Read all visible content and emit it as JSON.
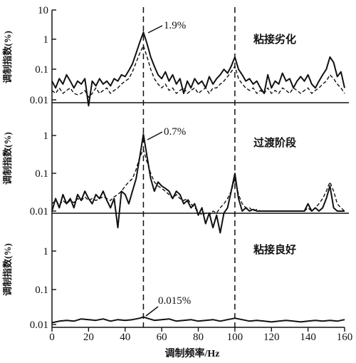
{
  "chart_data": {
    "type": "line",
    "xlabel": "调制频率/Hz",
    "xlim": [
      0,
      160
    ],
    "xticks": [
      "0",
      "20",
      "40",
      "60",
      "80",
      "100",
      "120",
      "140",
      "160"
    ],
    "ylabel": "调制指数(%)",
    "yscale": "log",
    "grid": false,
    "reference_lines_x": [
      50,
      100
    ],
    "panels": [
      {
        "stage_label": "粘接劣化",
        "ylim": [
          0.01,
          10
        ],
        "yticks": [
          "10",
          "1",
          "0.1",
          "0.01"
        ],
        "annotation": {
          "text": "1.9%",
          "x": 50,
          "y": 1.9
        },
        "series": [
          {
            "style": "solid",
            "x": [
              0,
              2,
              4,
              6,
              8,
              10,
              12,
              14,
              16,
              18,
              20,
              22,
              24,
              26,
              28,
              30,
              32,
              34,
              36,
              38,
              40,
              42,
              44,
              46,
              48,
              50,
              52,
              54,
              56,
              58,
              60,
              62,
              64,
              66,
              68,
              70,
              72,
              74,
              76,
              78,
              80,
              82,
              84,
              86,
              88,
              90,
              92,
              94,
              96,
              98,
              100,
              102,
              104,
              106,
              108,
              110,
              112,
              114,
              116,
              118,
              120,
              122,
              124,
              126,
              128,
              130,
              132,
              134,
              136,
              138,
              140,
              142,
              144,
              146,
              148,
              150,
              152,
              154,
              156,
              158,
              160
            ],
            "y": [
              0.05,
              0.03,
              0.06,
              0.04,
              0.08,
              0.05,
              0.03,
              0.05,
              0.04,
              0.06,
              0.008,
              0.05,
              0.035,
              0.06,
              0.04,
              0.05,
              0.035,
              0.06,
              0.05,
              0.08,
              0.07,
              0.11,
              0.18,
              0.4,
              0.9,
              1.9,
              0.8,
              0.3,
              0.15,
              0.08,
              0.06,
              0.1,
              0.05,
              0.08,
              0.04,
              0.06,
              0.02,
              0.05,
              0.03,
              0.06,
              0.04,
              0.05,
              0.03,
              0.07,
              0.04,
              0.06,
              0.08,
              0.12,
              0.09,
              0.15,
              0.3,
              0.12,
              0.08,
              0.05,
              0.06,
              0.04,
              0.05,
              0.03,
              0.02,
              0.08,
              0.03,
              0.05,
              0.04,
              0.09,
              0.05,
              0.06,
              0.03,
              0.05,
              0.07,
              0.05,
              0.08,
              0.04,
              0.03,
              0.05,
              0.08,
              0.12,
              0.3,
              0.2,
              0.07,
              0.1,
              0.03
            ]
          },
          {
            "style": "dashed",
            "x": [
              0,
              2,
              4,
              6,
              8,
              10,
              12,
              14,
              16,
              18,
              20,
              22,
              24,
              26,
              28,
              30,
              32,
              34,
              36,
              38,
              40,
              42,
              44,
              46,
              48,
              50,
              52,
              54,
              56,
              58,
              60,
              62,
              64,
              66,
              68,
              70,
              72,
              74,
              76,
              78,
              80,
              82,
              84,
              86,
              88,
              90,
              92,
              94,
              96,
              98,
              100,
              102,
              104,
              106,
              108,
              110,
              112,
              114,
              116,
              118,
              120,
              122,
              124,
              126,
              128,
              130,
              132,
              134,
              136,
              138,
              140,
              142,
              144,
              146,
              148,
              150,
              152,
              154,
              156,
              158,
              160
            ],
            "y": [
              0.025,
              0.02,
              0.03,
              0.02,
              0.025,
              0.03,
              0.02,
              0.018,
              0.02,
              0.025,
              0.015,
              0.02,
              0.03,
              0.02,
              0.025,
              0.03,
              0.02,
              0.025,
              0.03,
              0.04,
              0.05,
              0.06,
              0.1,
              0.2,
              0.4,
              0.7,
              0.3,
              0.12,
              0.06,
              0.04,
              0.03,
              0.04,
              0.025,
              0.03,
              0.02,
              0.025,
              0.03,
              0.02,
              0.025,
              0.03,
              0.02,
              0.025,
              0.03,
              0.02,
              0.03,
              0.03,
              0.04,
              0.05,
              0.07,
              0.1,
              0.15,
              0.06,
              0.04,
              0.03,
              0.025,
              0.03,
              0.02,
              0.025,
              0.02,
              0.03,
              0.02,
              0.025,
              0.02,
              0.03,
              0.025,
              0.02,
              0.03,
              0.025,
              0.02,
              0.025,
              0.03,
              0.02,
              0.025,
              0.03,
              0.04,
              0.05,
              0.08,
              0.06,
              0.04,
              0.03,
              0.02
            ]
          }
        ]
      },
      {
        "stage_label": "过渡阶段",
        "ylim": [
          0.01,
          4
        ],
        "yticks": [
          "1",
          "0.1",
          "0.01"
        ],
        "annotation": {
          "text": "0.7%",
          "x": 50,
          "y": 0.7
        },
        "series": [
          {
            "style": "solid",
            "x": [
              0,
              2,
              4,
              6,
              8,
              10,
              12,
              14,
              16,
              18,
              20,
              22,
              24,
              26,
              28,
              30,
              32,
              34,
              36,
              38,
              40,
              42,
              44,
              46,
              48,
              50,
              52,
              54,
              56,
              58,
              60,
              62,
              64,
              66,
              68,
              70,
              72,
              74,
              76,
              78,
              80,
              82,
              84,
              86,
              88,
              90,
              92,
              94,
              96,
              98,
              100,
              102,
              104,
              106,
              108,
              110,
              112,
              114,
              116,
              118,
              120,
              122,
              124,
              126,
              128,
              130,
              132,
              134,
              136,
              138,
              140,
              142,
              144,
              146,
              148,
              150,
              152,
              154,
              156,
              158,
              160
            ],
            "y": [
              0.01,
              0.02,
              0.012,
              0.025,
              0.015,
              0.02,
              0.012,
              0.025,
              0.018,
              0.03,
              0.02,
              0.015,
              0.025,
              0.02,
              0.03,
              0.018,
              0.012,
              0.02,
              0.004,
              0.03,
              0.025,
              0.015,
              0.03,
              0.06,
              0.2,
              0.7,
              0.2,
              0.06,
              0.03,
              0.05,
              0.04,
              0.035,
              0.03,
              0.02,
              0.03,
              0.025,
              0.015,
              0.018,
              0.012,
              0.015,
              0.008,
              0.012,
              0.005,
              0.009,
              0.004,
              0.008,
              0.003,
              0.009,
              0.012,
              0.03,
              0.08,
              0.02,
              0.01,
              0.012,
              0.01,
              0.011,
              0.01,
              0.01,
              0.01,
              0.01,
              0.01,
              0.01,
              0.01,
              0.01,
              0.01,
              0.01,
              0.01,
              0.01,
              0.01,
              0.01,
              0.015,
              0.01,
              0.012,
              0.01,
              0.012,
              0.02,
              0.04,
              0.012,
              0.01,
              0.01,
              0.01
            ]
          },
          {
            "style": "dashed",
            "x": [
              0,
              2,
              4,
              6,
              8,
              10,
              12,
              14,
              16,
              18,
              20,
              22,
              24,
              26,
              28,
              30,
              32,
              34,
              36,
              38,
              40,
              42,
              44,
              46,
              48,
              50,
              52,
              54,
              56,
              58,
              60,
              62,
              64,
              66,
              68,
              70,
              72,
              74,
              76,
              78,
              80,
              82,
              84,
              86,
              88,
              90,
              92,
              94,
              96,
              98,
              100,
              102,
              104,
              106,
              108,
              110,
              112,
              114,
              116,
              118,
              120,
              122,
              124,
              126,
              128,
              130,
              132,
              134,
              136,
              138,
              140,
              142,
              144,
              146,
              148,
              150,
              152,
              154,
              156,
              158,
              160
            ],
            "y": [
              0.015,
              0.018,
              0.014,
              0.018,
              0.015,
              0.018,
              0.016,
              0.02,
              0.018,
              0.022,
              0.018,
              0.02,
              0.018,
              0.02,
              0.022,
              0.02,
              0.018,
              0.022,
              0.025,
              0.03,
              0.04,
              0.05,
              0.06,
              0.1,
              0.2,
              0.3,
              0.15,
              0.08,
              0.05,
              0.04,
              0.035,
              0.03,
              0.025,
              0.02,
              0.025,
              0.02,
              0.018,
              0.02,
              0.015,
              0.012,
              0.01,
              0.008,
              0.009,
              0.008,
              0.01,
              0.009,
              0.012,
              0.015,
              0.02,
              0.03,
              0.06,
              0.025,
              0.015,
              0.012,
              0.012,
              0.01,
              0.011,
              0.01,
              0.01,
              0.01,
              0.01,
              0.01,
              0.01,
              0.01,
              0.01,
              0.01,
              0.01,
              0.01,
              0.01,
              0.01,
              0.012,
              0.01,
              0.012,
              0.015,
              0.02,
              0.03,
              0.05,
              0.03,
              0.015,
              0.012,
              0.01
            ]
          }
        ]
      },
      {
        "stage_label": "粘接良好",
        "ylim": [
          0.01,
          4
        ],
        "yticks": [
          "1",
          "0.1",
          "0.01"
        ],
        "annotation": {
          "text": "0.015%",
          "x": 50,
          "y": 0.015
        },
        "series": [
          {
            "style": "solid",
            "x": [
              0,
              4,
              8,
              12,
              16,
              20,
              24,
              28,
              32,
              36,
              40,
              44,
              48,
              50,
              52,
              56,
              60,
              64,
              68,
              72,
              76,
              80,
              84,
              88,
              92,
              96,
              100,
              104,
              108,
              112,
              116,
              120,
              124,
              128,
              132,
              136,
              140,
              144,
              148,
              152,
              156,
              160
            ],
            "y": [
              0.011,
              0.012,
              0.0125,
              0.012,
              0.0135,
              0.013,
              0.0125,
              0.0135,
              0.012,
              0.013,
              0.0125,
              0.013,
              0.014,
              0.015,
              0.014,
              0.0125,
              0.013,
              0.0135,
              0.012,
              0.0125,
              0.013,
              0.012,
              0.0125,
              0.013,
              0.012,
              0.013,
              0.014,
              0.013,
              0.012,
              0.0125,
              0.012,
              0.0115,
              0.012,
              0.0125,
              0.012,
              0.0115,
              0.012,
              0.0125,
              0.012,
              0.0125,
              0.012,
              0.013
            ]
          }
        ]
      }
    ]
  }
}
